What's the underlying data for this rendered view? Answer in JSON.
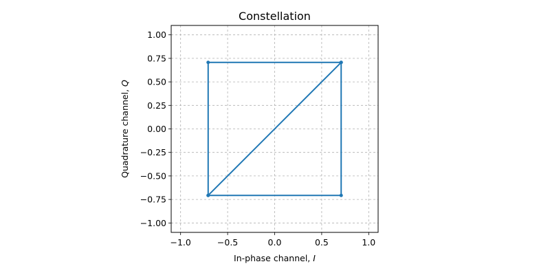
{
  "chart_data": {
    "type": "line",
    "title": "Constellation",
    "xlabel_prefix": "In-phase channel, ",
    "xlabel_var": "I",
    "ylabel_prefix": "Quadrature channel, ",
    "ylabel_var": "Q",
    "xlim": [
      -1.1,
      1.1
    ],
    "ylim": [
      -1.1,
      1.1
    ],
    "xticks": [
      -1.0,
      -0.5,
      0.0,
      0.5,
      1.0
    ],
    "xtick_labels": [
      "−1.0",
      "−0.5",
      "0.0",
      "0.5",
      "1.0"
    ],
    "yticks": [
      1.0,
      0.75,
      0.5,
      0.25,
      0.0,
      -0.25,
      -0.5,
      -0.75,
      -1.0
    ],
    "ytick_labels": [
      "1.00",
      "0.75",
      "0.50",
      "0.25",
      "0.00",
      "−0.25",
      "−0.50",
      "−0.75",
      "−1.00"
    ],
    "grid": true,
    "grid_style": "dashed",
    "series": [
      {
        "color": "#1f77b4",
        "x": [
          0.707,
          -0.707,
          -0.707,
          0.707,
          0.707,
          -0.707
        ],
        "y": [
          0.707,
          0.707,
          -0.707,
          -0.707,
          0.707,
          -0.707
        ]
      }
    ]
  }
}
